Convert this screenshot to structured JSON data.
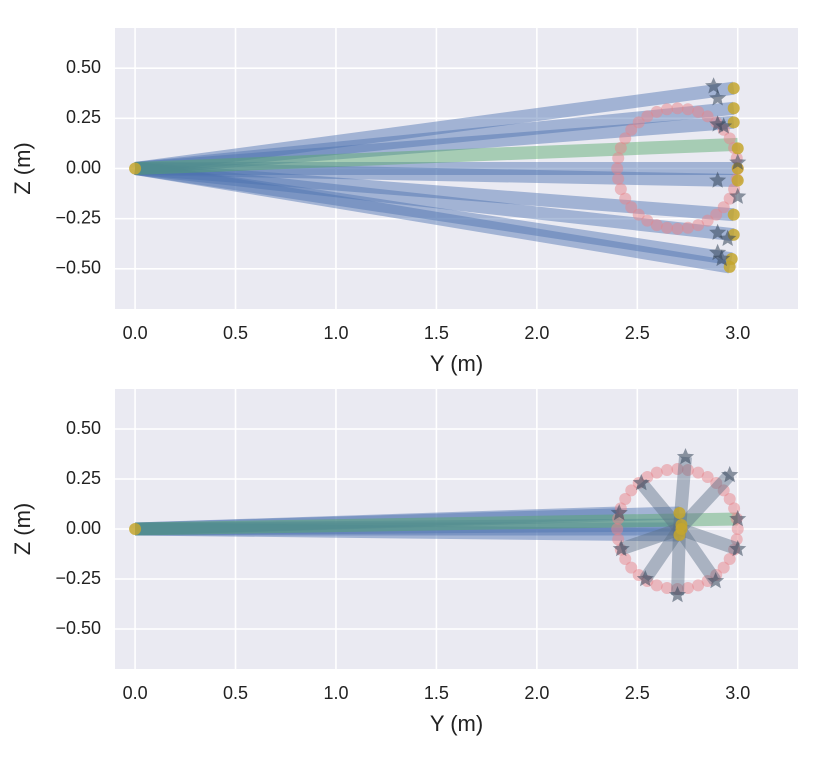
{
  "chart_data": [
    {
      "type": "line",
      "xlabel": "Y (m)",
      "ylabel": "Z (m)",
      "grid": true,
      "background": "#eaeaf2",
      "xlim": [
        -0.1,
        3.3
      ],
      "ylim": [
        -0.7,
        0.7
      ],
      "xticks": [
        {
          "value": 0,
          "label": "0.0"
        },
        {
          "value": 0.5,
          "label": "0.5"
        },
        {
          "value": 1,
          "label": "1.0"
        },
        {
          "value": 1.5,
          "label": "1.5"
        },
        {
          "value": 2,
          "label": "2.0"
        },
        {
          "value": 2.5,
          "label": "2.5"
        },
        {
          "value": 3,
          "label": "3.0"
        }
      ],
      "yticks": [
        {
          "value": 0.5,
          "label": "0.50"
        },
        {
          "value": 0.25,
          "label": "0.25"
        },
        {
          "value": 0,
          "label": "0.00"
        },
        {
          "value": -0.25,
          "label": "−0.25"
        },
        {
          "value": -0.5,
          "label": "−0.50"
        }
      ],
      "series": [
        {
          "color": "#4c72b0",
          "x": [
            0,
            2.98
          ],
          "values": [
            0,
            0.4
          ]
        },
        {
          "color": "#4c72b0",
          "x": [
            0,
            2.98
          ],
          "values": [
            0,
            0.3
          ]
        },
        {
          "color": "#4c72b0",
          "x": [
            0,
            2.98
          ],
          "values": [
            0,
            0.23
          ]
        },
        {
          "color": "#4c72b0",
          "x": [
            0,
            3.0
          ],
          "values": [
            0,
            0.0
          ]
        },
        {
          "color": "#4c72b0",
          "x": [
            0,
            3.0
          ],
          "values": [
            0,
            -0.06
          ]
        },
        {
          "color": "#4c72b0",
          "x": [
            0,
            2.98
          ],
          "values": [
            0,
            -0.23
          ]
        },
        {
          "color": "#4c72b0",
          "x": [
            0,
            2.98
          ],
          "values": [
            0,
            -0.33
          ]
        },
        {
          "color": "#4c72b0",
          "x": [
            0,
            2.97
          ],
          "values": [
            0,
            -0.45
          ]
        },
        {
          "color": "#4c72b0",
          "x": [
            0,
            2.96
          ],
          "values": [
            0,
            -0.49
          ]
        },
        {
          "color": "#55a868",
          "x": [
            0,
            3.0
          ],
          "values": [
            0,
            0.12
          ]
        },
        {
          "color": "#e8848a",
          "marker": "o",
          "x": [
            3.0,
            2.995,
            2.982,
            2.96,
            2.93,
            2.893,
            2.85,
            2.803,
            2.752,
            2.7,
            2.648,
            2.597,
            2.55,
            2.507,
            2.47,
            2.44,
            2.418,
            2.405,
            2.4,
            2.405,
            2.418,
            2.44,
            2.47,
            2.507,
            2.55,
            2.597,
            2.648,
            2.7,
            2.752,
            2.803,
            2.85,
            2.893,
            2.93,
            2.96,
            2.982,
            2.995
          ],
          "values": [
            0,
            0.052,
            0.103,
            0.15,
            0.193,
            0.23,
            0.26,
            0.282,
            0.295,
            0.3,
            0.295,
            0.282,
            0.26,
            0.23,
            0.193,
            0.15,
            0.103,
            0.052,
            0,
            -0.052,
            -0.103,
            -0.15,
            -0.193,
            -0.23,
            -0.26,
            -0.282,
            -0.295,
            -0.3,
            -0.295,
            -0.282,
            -0.26,
            -0.23,
            -0.193,
            -0.15,
            -0.103,
            -0.052
          ]
        },
        {
          "color": "#c4a62e",
          "marker": "o",
          "x": [
            0,
            2.98,
            2.98,
            2.98,
            3.0,
            3.0,
            3.0,
            2.98,
            2.98,
            2.97,
            2.96
          ],
          "values": [
            0,
            0.4,
            0.3,
            0.23,
            0.1,
            0.0,
            -0.06,
            -0.23,
            -0.33,
            -0.45,
            -0.49
          ]
        },
        {
          "color": "#34455a",
          "marker": "*",
          "x": [
            2.88,
            2.9,
            2.9,
            2.93,
            3.0,
            2.9,
            3.0,
            2.9,
            2.95,
            2.9,
            2.92
          ],
          "values": [
            0.41,
            0.35,
            0.22,
            0.21,
            0.03,
            -0.06,
            -0.14,
            -0.32,
            -0.35,
            -0.42,
            -0.45
          ]
        }
      ]
    },
    {
      "type": "line",
      "xlabel": "Y (m)",
      "ylabel": "Z (m)",
      "grid": true,
      "background": "#eaeaf2",
      "xlim": [
        -0.1,
        3.3
      ],
      "ylim": [
        -0.7,
        0.7
      ],
      "xticks": [
        {
          "value": 0,
          "label": "0.0"
        },
        {
          "value": 0.5,
          "label": "0.5"
        },
        {
          "value": 1,
          "label": "1.0"
        },
        {
          "value": 1.5,
          "label": "1.5"
        },
        {
          "value": 2,
          "label": "2.0"
        },
        {
          "value": 2.5,
          "label": "2.5"
        },
        {
          "value": 3,
          "label": "3.0"
        }
      ],
      "yticks": [
        {
          "value": 0.5,
          "label": "0.50"
        },
        {
          "value": 0.25,
          "label": "0.25"
        },
        {
          "value": 0,
          "label": "0.00"
        },
        {
          "value": -0.25,
          "label": "−0.25"
        },
        {
          "value": -0.5,
          "label": "−0.50"
        }
      ],
      "series": [
        {
          "color": "#4c72b0",
          "x": [
            0,
            2.41
          ],
          "values": [
            0,
            0.08
          ]
        },
        {
          "color": "#4c72b0",
          "x": [
            0,
            2.71
          ],
          "values": [
            0,
            0.08
          ]
        },
        {
          "color": "#4c72b0",
          "x": [
            0,
            2.72
          ],
          "values": [
            0,
            0.02
          ]
        },
        {
          "color": "#4c72b0",
          "x": [
            0,
            2.72
          ],
          "values": [
            0,
            0.0
          ]
        },
        {
          "color": "#4c72b0",
          "x": [
            0,
            2.71
          ],
          "values": [
            0,
            -0.03
          ]
        },
        {
          "color": "#55a868",
          "x": [
            0,
            3.0
          ],
          "values": [
            0,
            0.05
          ]
        },
        {
          "color": "#e8848a",
          "marker": "o",
          "x": [
            3.0,
            2.995,
            2.982,
            2.96,
            2.93,
            2.893,
            2.85,
            2.803,
            2.752,
            2.7,
            2.648,
            2.597,
            2.55,
            2.507,
            2.47,
            2.44,
            2.418,
            2.405,
            2.4,
            2.405,
            2.418,
            2.44,
            2.47,
            2.507,
            2.55,
            2.597,
            2.648,
            2.7,
            2.752,
            2.803,
            2.85,
            2.893,
            2.93,
            2.96,
            2.982,
            2.995
          ],
          "values": [
            0,
            0.052,
            0.103,
            0.15,
            0.193,
            0.23,
            0.26,
            0.282,
            0.295,
            0.3,
            0.295,
            0.282,
            0.26,
            0.23,
            0.193,
            0.15,
            0.103,
            0.052,
            0,
            -0.052,
            -0.103,
            -0.15,
            -0.193,
            -0.23,
            -0.26,
            -0.282,
            -0.295,
            -0.3,
            -0.295,
            -0.282,
            -0.26,
            -0.23,
            -0.193,
            -0.15,
            -0.103,
            -0.052
          ]
        },
        {
          "color": "#5b6e85",
          "x": [
            2.71,
            2.74
          ],
          "values": [
            0,
            0.36
          ]
        },
        {
          "color": "#5b6e85",
          "x": [
            2.71,
            2.96
          ],
          "values": [
            0,
            0.27
          ]
        },
        {
          "color": "#5b6e85",
          "x": [
            2.71,
            2.52
          ],
          "values": [
            0,
            0.23
          ]
        },
        {
          "color": "#5b6e85",
          "x": [
            2.71,
            2.42
          ],
          "values": [
            0,
            -0.1
          ]
        },
        {
          "color": "#5b6e85",
          "x": [
            2.71,
            3.0
          ],
          "values": [
            0,
            -0.1
          ]
        },
        {
          "color": "#5b6e85",
          "x": [
            2.71,
            2.54
          ],
          "values": [
            0,
            -0.25
          ]
        },
        {
          "color": "#5b6e85",
          "x": [
            2.71,
            2.89
          ],
          "values": [
            0,
            -0.26
          ]
        },
        {
          "color": "#5b6e85",
          "x": [
            2.71,
            2.7
          ],
          "values": [
            0,
            -0.33
          ]
        },
        {
          "color": "#c4a62e",
          "marker": "o",
          "x": [
            0,
            2.71,
            2.72,
            2.72,
            2.71
          ],
          "values": [
            0,
            0.08,
            0.02,
            0.0,
            -0.03
          ]
        },
        {
          "color": "#34455a",
          "marker": "*",
          "x": [
            2.74,
            2.96,
            2.52,
            2.41,
            3.0,
            2.42,
            3.0,
            2.54,
            2.89,
            2.7
          ],
          "values": [
            0.36,
            0.27,
            0.23,
            0.08,
            0.05,
            -0.1,
            -0.1,
            -0.25,
            -0.26,
            -0.33
          ]
        }
      ]
    }
  ]
}
